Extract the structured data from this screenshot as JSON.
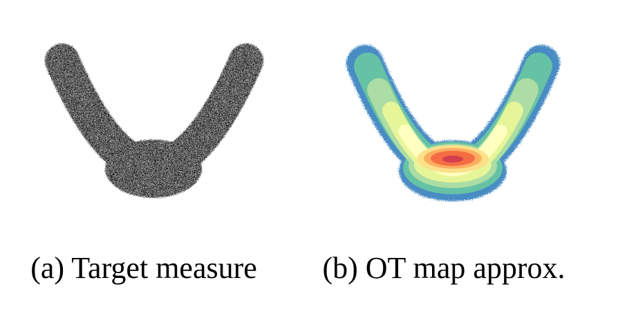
{
  "panels": [
    {
      "caption": "(a) Target measure"
    },
    {
      "caption": "(b) OT map approx."
    }
  ]
}
